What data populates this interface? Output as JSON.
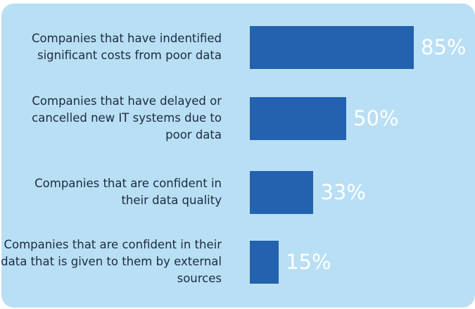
{
  "chart_data": {
    "type": "bar",
    "orientation": "horizontal",
    "categories": [
      "Companies that have indentified significant costs from poor data",
      "Companies that have delayed or cancelled new IT systems due to poor data",
      "Companies that are confident in their data quality",
      "Companies that are confident in their data that is given to them by external sources"
    ],
    "values": [
      85,
      50,
      33,
      15
    ],
    "value_labels": [
      "85%",
      "50%",
      "33%",
      "15%"
    ],
    "color": "#2262ae"
  }
}
